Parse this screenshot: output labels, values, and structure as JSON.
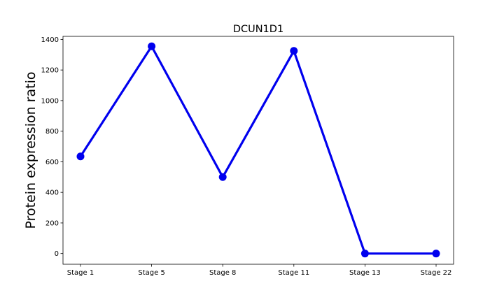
{
  "chart_data": {
    "type": "line",
    "title": "DCUN1D1",
    "xlabel": "",
    "ylabel": "Protein expression ratio",
    "categories": [
      "Stage 1",
      "Stage 5",
      "Stage 8",
      "Stage 11",
      "Stage 13",
      "Stage 22"
    ],
    "series": [
      {
        "values": [
          635,
          1355,
          500,
          1325,
          0,
          0
        ],
        "color": "#0000ee"
      }
    ],
    "yticks": [
      0,
      200,
      400,
      600,
      800,
      1000,
      1200,
      1400
    ],
    "ylim": [
      -70,
      1420
    ],
    "grid": false,
    "legend": false,
    "marker": "circle"
  }
}
